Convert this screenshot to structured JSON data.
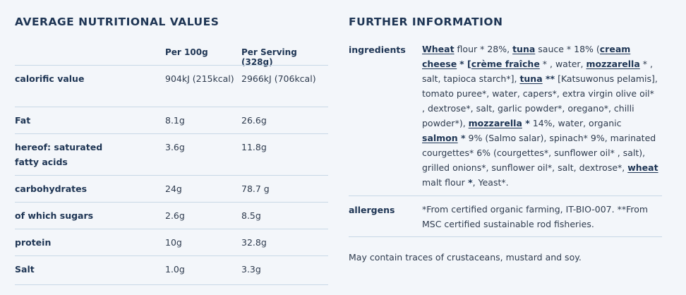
{
  "nutrition": {
    "title": "AVERAGE NUTRITIONAL VALUES",
    "col_per100": "Per 100g",
    "col_serving": "Per Serving (328g)",
    "rows": [
      {
        "label": "calorific value",
        "per100": "904kJ (215kcal)",
        "serving": "2966kJ (706kcal)"
      },
      {
        "label": "Fat",
        "per100": "8.1g",
        "serving": "26.6g"
      },
      {
        "label": "hereof: saturated fatty acids",
        "per100": "3.6g",
        "serving": "11.8g"
      },
      {
        "label": "carbohydrates",
        "per100": "24g",
        "serving": "78.7 g"
      },
      {
        "label": "of which sugars",
        "per100": "2.6g",
        "serving": "8.5g"
      },
      {
        "label": "protein",
        "per100": "10g",
        "serving": "32.8g"
      },
      {
        "label": "Salt",
        "per100": "1.0g",
        "serving": "3.3g"
      }
    ]
  },
  "further": {
    "title": "FURTHER INFORMATION",
    "ingredients_label": "ingredients",
    "ingredients": {
      "w1": "Wheat",
      "t1": " flour * 28%,",
      "w2": "tuna",
      "t2": " sauce * 18% (",
      "w3": "cream cheese",
      "w4": "* [",
      "w5": "crème fraîche",
      "t3": " * , water,",
      "w6": "mozzarella",
      "t4": " * , salt, tapioca starch*],",
      "w7": "tuna",
      "w8": " **",
      "t5": " [Katsuwonus pelamis], tomato puree*, water, capers*, extra virgin olive oil* , dextrose*, salt, garlic powder*, oregano*, chilli powder*),",
      "w9": "mozzarella",
      "w10": " *",
      "t6": " 14%, water, organic",
      "w11": "salmon",
      "w12": " *",
      "t7": " 9% (Salmo salar), spinach* 9%, marinated courgettes* 6% (courgettes*, sunflower oil* , salt), grilled onions*, sunflower oil*, salt, dextrose*,",
      "w13": "wheat",
      "t8": " malt flour",
      "w14": " *",
      "t9": ", Yeast*."
    },
    "allergens_label": "allergens",
    "allergens_text": "*From certified organic farming, IT-BIO-007. **From MSC certified sustainable rod fisheries.",
    "traces_text": "May contain traces of crustaceans, mustard and soy."
  }
}
